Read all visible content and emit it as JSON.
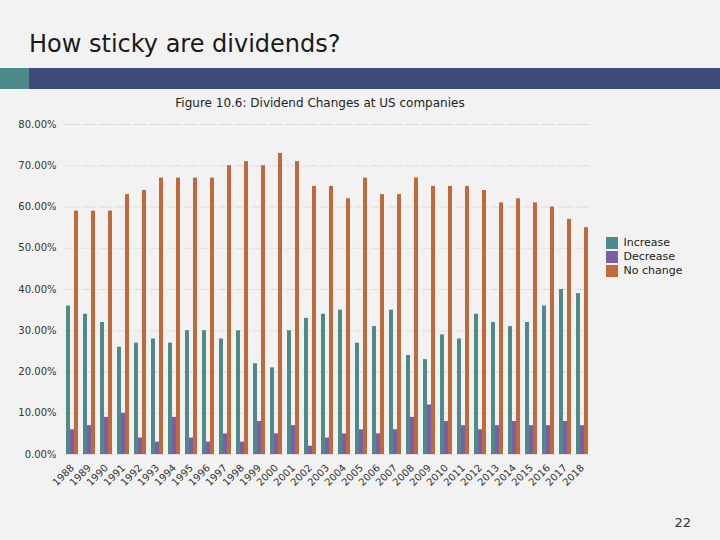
{
  "chart_data": {
    "type": "bar",
    "title": "Figure 10.6: Dividend Changes at US companies",
    "annotations": [
      "How sticky are dividends?",
      "22"
    ],
    "categories": [
      "1988",
      "1989",
      "1990",
      "1991",
      "1992",
      "1993",
      "1994",
      "1995",
      "1996",
      "1997",
      "1998",
      "1999",
      "2000",
      "2001",
      "2002",
      "2003",
      "2004",
      "2005",
      "2006",
      "2007",
      "2008",
      "2009",
      "2010",
      "2011",
      "2012",
      "2013",
      "2014",
      "2015",
      "2016",
      "2017",
      "2018"
    ],
    "series": [
      {
        "name": "Increase",
        "color": "#4e8a8a",
        "values": [
          36,
          34,
          32,
          26,
          27,
          28,
          27,
          30,
          30,
          28,
          30,
          22,
          21,
          30,
          33,
          34,
          35,
          27,
          31,
          35,
          24,
          23,
          29,
          28,
          34,
          32,
          31,
          32,
          36,
          40,
          39
        ]
      },
      {
        "name": "Decrease",
        "color": "#7b5ea7",
        "values": [
          6,
          7,
          9,
          10,
          4,
          3,
          9,
          4,
          3,
          5,
          3,
          8,
          5,
          7,
          2,
          4,
          5,
          6,
          5,
          6,
          9,
          12,
          8,
          7,
          6,
          7,
          8,
          7,
          7,
          8,
          7
        ]
      },
      {
        "name": "No change",
        "color": "#c0693a",
        "values": [
          59,
          59,
          59,
          63,
          64,
          67,
          67,
          67,
          67,
          70,
          71,
          70,
          73,
          71,
          65,
          65,
          62,
          67,
          63,
          63,
          67,
          65,
          65,
          65,
          64,
          61,
          62,
          61,
          60,
          57,
          55
        ]
      }
    ],
    "ylim": [
      0,
      80
    ],
    "yticks": [
      {
        "value": 0,
        "label": "0.00%"
      },
      {
        "value": 10,
        "label": "10.00%"
      },
      {
        "value": 20,
        "label": "20.00%"
      },
      {
        "value": 30,
        "label": "30.00%"
      },
      {
        "value": 40,
        "label": "40.00%"
      },
      {
        "value": 50,
        "label": "50.00%"
      },
      {
        "value": 60,
        "label": "60.00%"
      },
      {
        "value": 70,
        "label": "70.00%"
      },
      {
        "value": 80,
        "label": "80.00%"
      }
    ],
    "grid": true,
    "legend": "right"
  }
}
